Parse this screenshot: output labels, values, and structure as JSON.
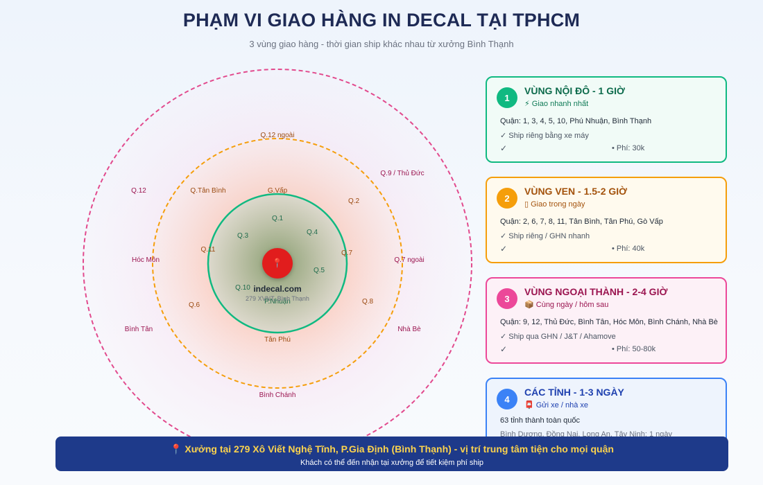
{
  "title": "PHẠM VI GIAO HÀNG IN DECAL TẠI TPHCM",
  "subtitle": "3 vùng giao hàng - thời gian ship khác nhau từ xưởng Bình Thạnh",
  "colors": {
    "zone1": "#10b981",
    "zone2": "#f59e0b",
    "zone3": "#ec4899",
    "zone4": "#3b82f6",
    "banner": "#1e3a8a",
    "pin": "#e11d1d"
  },
  "map": {
    "center_icon": "map-pin-icon",
    "brand": "indecal.com",
    "brand_address": "279 XVNT, Bình Thạnh",
    "zone1_labels": [
      "Q.1",
      "Q.3",
      "Q.4",
      "Q.5",
      "Q.10",
      "P.Nhuận"
    ],
    "zone2_labels": [
      "Q.12 ngoài",
      "Q.Tân Bình",
      "G.Vấp",
      "Q.2",
      "Q.11",
      "Q.7",
      "Q.6",
      "Q.8",
      "Tân Phú"
    ],
    "zone3_labels": [
      "Q.12",
      "Q.9 / Thủ Đức",
      "Hóc Môn",
      "Q.7 ngoài",
      "Bình Tân",
      "Nhà Bè",
      "Bình Chánh"
    ]
  },
  "zones": [
    {
      "num": "1",
      "title": "VÙNG NỘI ĐÔ - 1 GIỜ",
      "tag": "⚡ Giao nhanh nhất",
      "districts": "Quận: 1, 3, 4, 5, 10, Phú Nhuận, Bình Thạnh",
      "ship": "✓ Ship riêng bằng xe máy",
      "check": "✓",
      "fee": "• Phí: 30k"
    },
    {
      "num": "2",
      "title": "VÙNG VEN - 1.5-2 GIỜ",
      "tag": "▯ Giao trong ngày",
      "districts": "Quận: 2, 6, 7, 8, 11, Tân Bình, Tân Phú, Gò Vấp",
      "ship": "✓ Ship riêng / GHN nhanh",
      "check": "✓",
      "fee": "• Phí: 40k"
    },
    {
      "num": "3",
      "title": "VÙNG NGOẠI THÀNH - 2-4 GIỜ",
      "tag": "📦 Cùng ngày / hôm sau",
      "districts": "Quận: 9, 12, Thủ Đức, Bình Tân, Hóc Môn, Bình Chánh, Nhà Bè",
      "ship": "✓ Ship qua GHN / J&T / Ahamove",
      "check": "✓",
      "fee": "• Phí: 50-80k"
    },
    {
      "num": "4",
      "title": "CÁC TỈNH - 1-3 NGÀY",
      "tag": "📮 Gửi xe / nhà xe",
      "districts": "63 tỉnh thành toàn quốc",
      "ship": "Bình Dương, Đồng Nai, Long An, Tây Ninh: 1 ngày"
    }
  ],
  "banner": {
    "main": "📍 Xưởng tại 279 Xô Viết Nghệ Tĩnh, P.Gia Định (Bình Thạnh) - vị trí trung tâm tiện cho mọi quận",
    "sub": "Khách có thể đến nhận tại xưởng để tiết kiệm phí ship"
  }
}
